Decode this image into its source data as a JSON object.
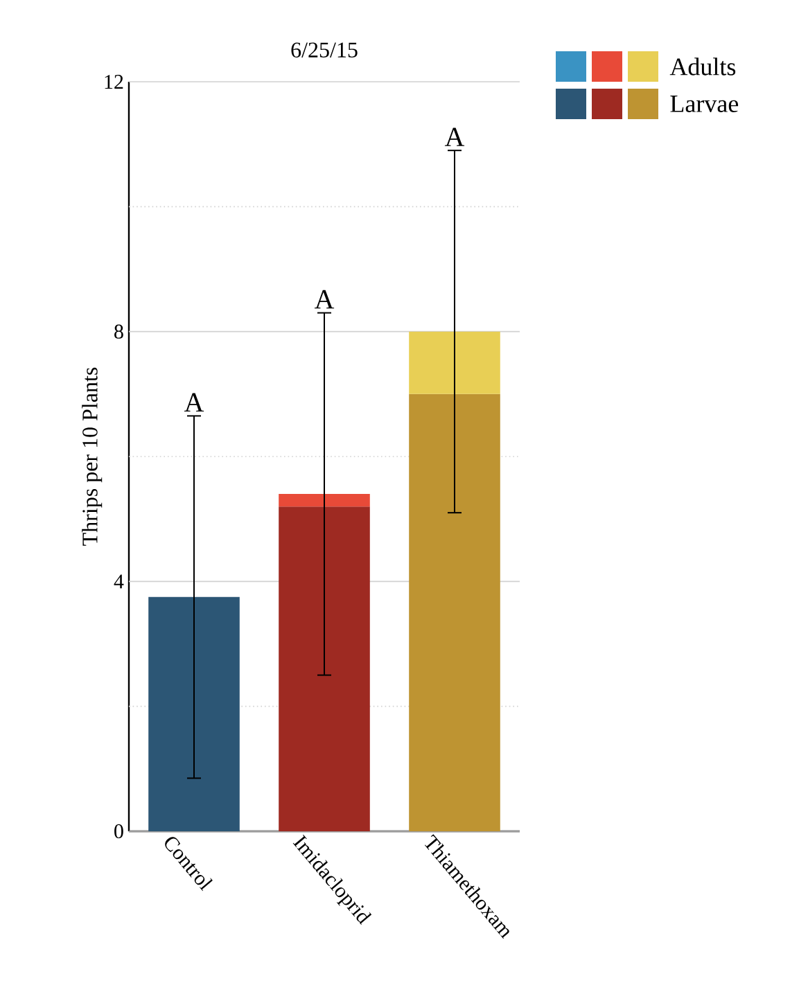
{
  "chart_data": {
    "type": "bar",
    "stacked": true,
    "title": "6/25/15",
    "ylabel": "Thrips per 10 Plants",
    "categories": [
      "Control",
      "Imidacloprid",
      "Thiamethoxam"
    ],
    "series": [
      {
        "name": "Larvae",
        "colors": [
          "#2c5675",
          "#9e2a22",
          "#be9432"
        ],
        "values": [
          3.75,
          5.2,
          7
        ],
        "errors": [
          2.9,
          null,
          null
        ]
      },
      {
        "name": "Adults",
        "colors": [
          "#3a93c3",
          "#e84a38",
          "#e8cf55"
        ],
        "values": [
          null,
          0.2,
          1
        ],
        "errors": [
          null,
          2.9,
          2.9
        ]
      }
    ],
    "ylim": [
      0,
      12
    ],
    "yticks": [
      0,
      {
        "value": 2,
        "label": null
      },
      4,
      {
        "value": 6,
        "label": null
      },
      8,
      {
        "value": 10,
        "label": null
      },
      12
    ],
    "grid": "y",
    "legend": "top right",
    "annotations": [
      "A",
      "A",
      "A"
    ]
  }
}
